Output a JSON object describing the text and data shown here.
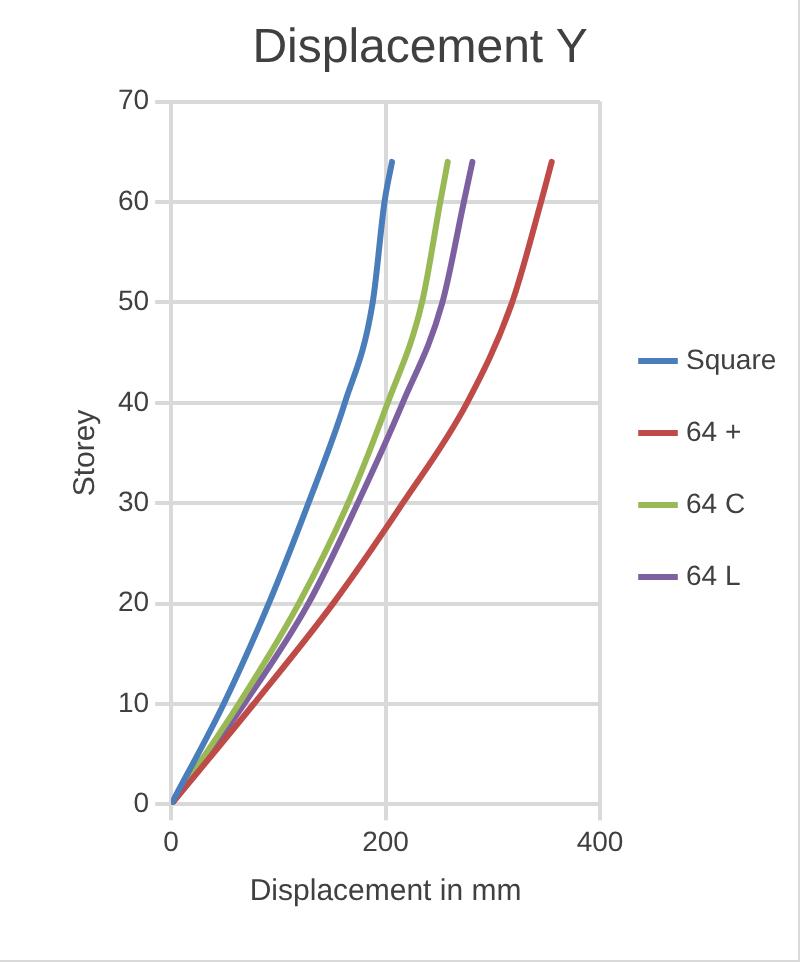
{
  "chart_data": {
    "type": "line",
    "title": "Displacement Y",
    "xlabel": "Displacement in mm",
    "ylabel": "Storey",
    "xlim": [
      0,
      400
    ],
    "xticks": [
      0,
      200,
      400
    ],
    "ylim": [
      0,
      70
    ],
    "yticks": [
      0,
      10,
      20,
      30,
      40,
      50,
      60,
      70
    ],
    "grid": true,
    "legend": "right",
    "marker": "none",
    "series": [
      {
        "name": "Square",
        "color": "#4a7ebb",
        "x": [
          0,
          49,
          91,
          128,
          162,
          188,
          199,
          206
        ],
        "values": [
          0,
          10,
          20,
          30,
          40,
          50,
          60,
          64
        ]
      },
      {
        "name": "64 +",
        "color": "#be4b48",
        "x": [
          0,
          77,
          151,
          216,
          276,
          318,
          345,
          355
        ],
        "values": [
          0,
          10,
          20,
          30,
          40,
          50,
          60,
          64
        ]
      },
      {
        "name": "64 C",
        "color": "#98b954",
        "x": [
          0,
          63,
          119,
          165,
          202,
          234,
          251,
          258
        ],
        "values": [
          0,
          10,
          20,
          30,
          40,
          50,
          60,
          64
        ]
      },
      {
        "name": "64 L",
        "color": "#7d60a0",
        "x": [
          0,
          68,
          128,
          174,
          216,
          253,
          273,
          281
        ],
        "values": [
          0,
          10,
          20,
          30,
          40,
          50,
          60,
          64
        ]
      }
    ]
  }
}
